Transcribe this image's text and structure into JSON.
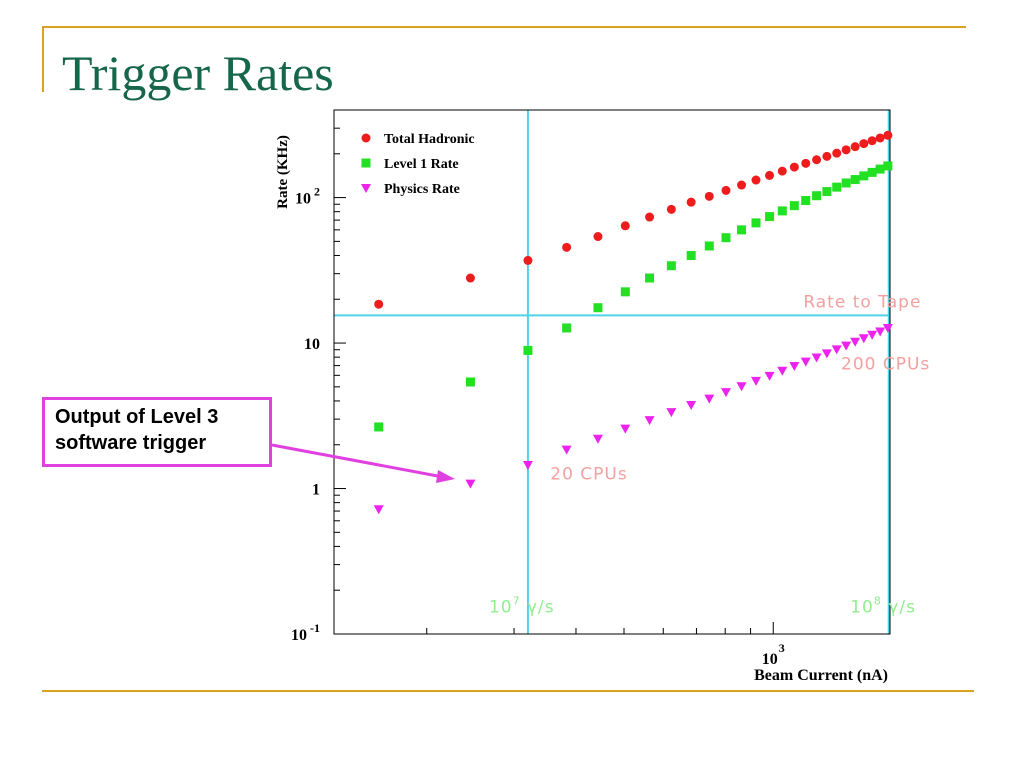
{
  "slide": {
    "title": "Trigger Rates",
    "callout_line1": "Output of Level 3",
    "callout_line2": "software trigger"
  },
  "colors": {
    "title": "#16664a",
    "rule": "#d9a21f",
    "total_hadronic": "#ee1c1c",
    "level1": "#22e022",
    "physics": "#ee22ee",
    "reference_lines": "#4fd3e8",
    "annotation_red": "#f4a0a0",
    "annotation_green": "#90ee90",
    "callout_border": "#e040e0"
  },
  "chart_data": {
    "type": "scatter",
    "xlabel": "Beam Current (nA)",
    "ylabel": "Rate (KHz)",
    "xscale": "log",
    "yscale": "log",
    "xlim": [
      130,
      1720
    ],
    "ylim": [
      0.1,
      400
    ],
    "yticks": [
      {
        "value": 0.1,
        "base": "10",
        "exp": "-1"
      },
      {
        "value": 1,
        "base": "1",
        "exp": ""
      },
      {
        "value": 10,
        "base": "10",
        "exp": ""
      },
      {
        "value": 100,
        "base": "10",
        "exp": "2"
      }
    ],
    "xticks": [
      {
        "value": 1000,
        "base": "10",
        "exp": "3"
      }
    ],
    "legend_position": "top-left",
    "series": [
      {
        "name": "Total Hadronic",
        "marker": "circle",
        "x": [
          160,
          245,
          320,
          383,
          443,
          503,
          563,
          623,
          683,
          743,
          803,
          863,
          923,
          983,
          1043,
          1103,
          1163,
          1223,
          1283,
          1343,
          1403,
          1463,
          1523,
          1583,
          1643,
          1703
        ],
        "y": [
          18.5,
          28,
          37,
          45.5,
          54,
          64,
          73.5,
          83,
          93,
          102,
          112,
          122,
          132,
          142,
          152,
          162,
          172,
          182,
          192,
          202,
          213,
          224,
          235,
          246,
          257,
          268
        ]
      },
      {
        "name": "Level 1 Rate",
        "marker": "square",
        "x": [
          160,
          245,
          320,
          383,
          443,
          503,
          563,
          623,
          683,
          743,
          803,
          863,
          923,
          983,
          1043,
          1103,
          1163,
          1223,
          1283,
          1343,
          1403,
          1463,
          1523,
          1583,
          1643,
          1703
        ],
        "y": [
          2.65,
          5.4,
          8.9,
          12.7,
          17.5,
          22.5,
          28,
          34,
          40,
          46.5,
          53,
          60,
          67,
          74,
          81,
          88,
          95.5,
          103,
          110,
          118,
          126,
          133,
          141,
          149,
          157,
          165
        ]
      },
      {
        "name": "Physics Rate",
        "marker": "triangle-down",
        "x": [
          160,
          245,
          320,
          383,
          443,
          503,
          563,
          623,
          683,
          743,
          803,
          863,
          923,
          983,
          1043,
          1103,
          1163,
          1223,
          1283,
          1343,
          1403,
          1463,
          1523,
          1583,
          1643,
          1703
        ],
        "y": [
          0.72,
          1.08,
          1.45,
          1.85,
          2.2,
          2.58,
          2.95,
          3.35,
          3.75,
          4.15,
          4.6,
          5.05,
          5.5,
          5.95,
          6.45,
          6.95,
          7.45,
          7.95,
          8.5,
          9.05,
          9.6,
          10.2,
          10.8,
          11.4,
          12,
          12.7
        ]
      }
    ],
    "reference_lines": [
      {
        "orientation": "horizontal",
        "value": 15.5
      },
      {
        "orientation": "vertical",
        "value": 320
      },
      {
        "orientation": "vertical",
        "value": 1710
      }
    ],
    "annotations": [
      {
        "text": "Rate to Tape",
        "x": 1150,
        "y": 17.5,
        "color": "red"
      },
      {
        "text": "200 CPUs",
        "x": 1370,
        "y": 6.6,
        "color": "red"
      },
      {
        "text": "20 CPUs",
        "x": 355,
        "y": 1.15,
        "color": "red"
      },
      {
        "text": "10",
        "sup": "7",
        "suffix": " γ/s",
        "x": 267,
        "y": 0.14,
        "color": "green"
      },
      {
        "text": "10",
        "sup": "8",
        "suffix": " γ/s",
        "x": 1430,
        "y": 0.14,
        "color": "green"
      }
    ]
  }
}
